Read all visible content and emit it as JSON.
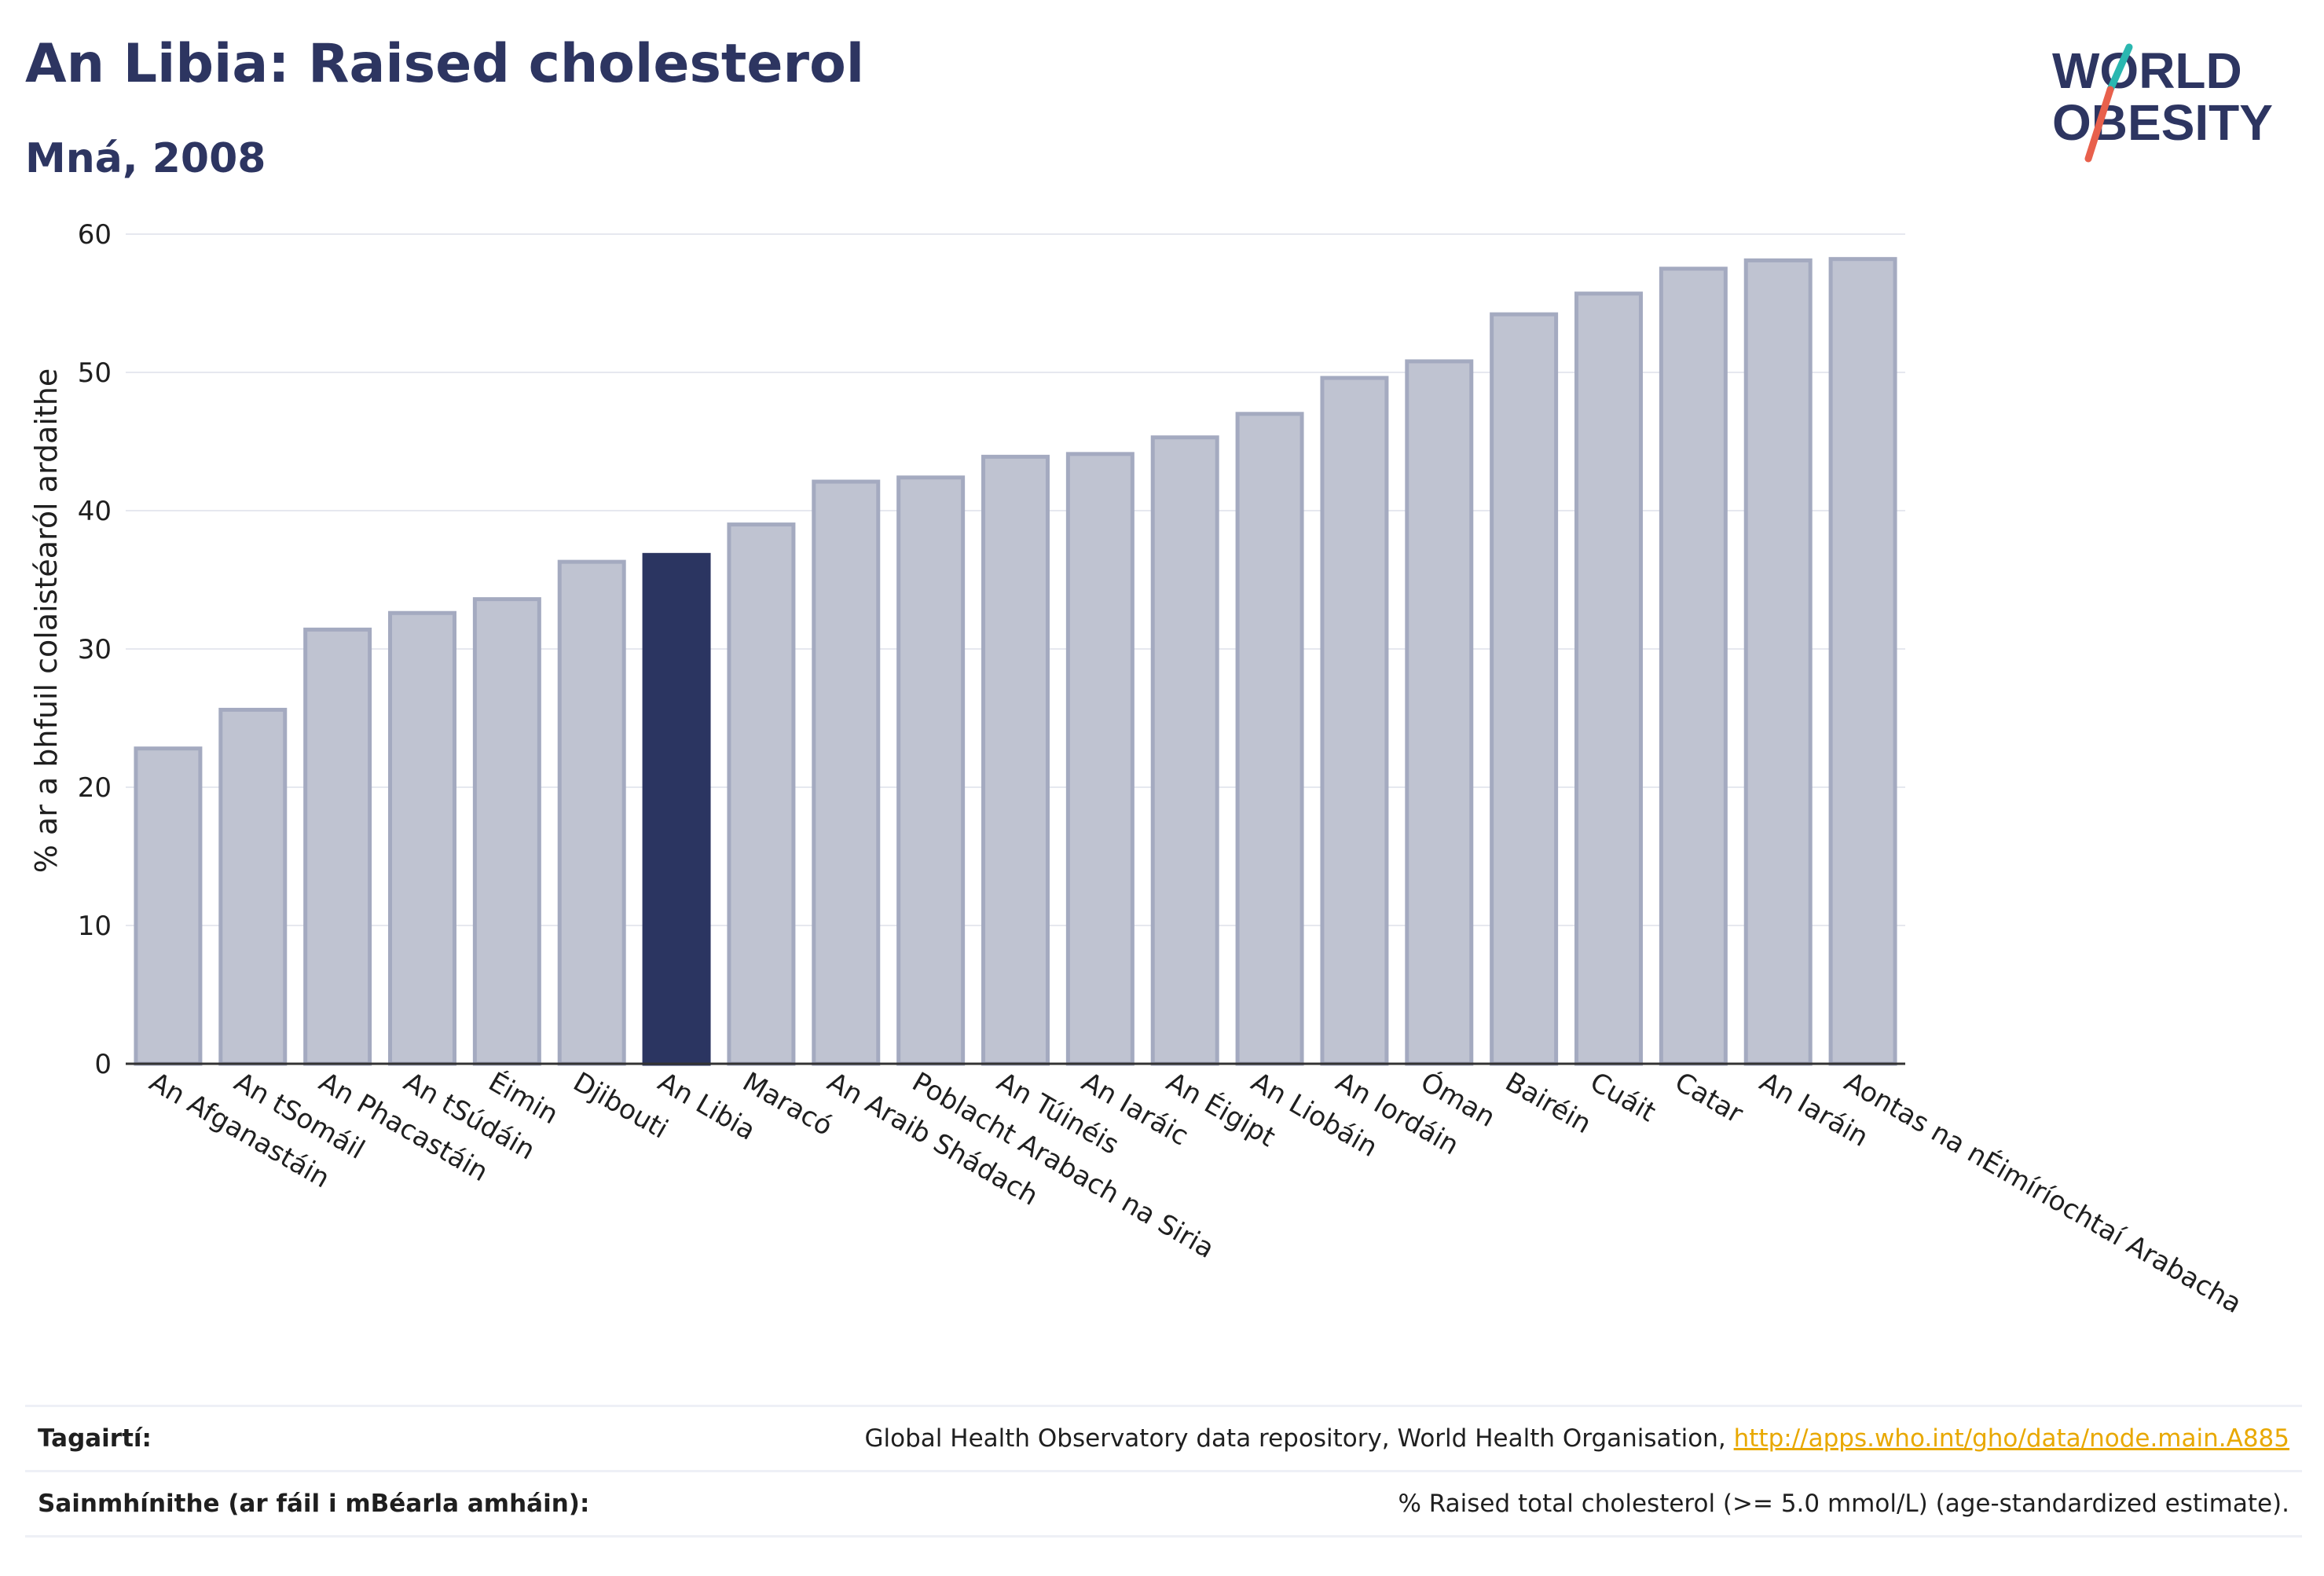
{
  "header": {
    "title": "An Libia: Raised cholesterol",
    "subtitle": "Mná, 2008"
  },
  "logo": {
    "line1": "WORLD",
    "line2": "OBESITY"
  },
  "colors": {
    "highlight": "#2b3561",
    "bar_fill": "#bfc3d1",
    "bar_stroke": "#a4aac0",
    "text_dark": "#2d3561",
    "link": "#e8a800",
    "logo_teal": "#2ab7b0",
    "logo_coral": "#e8604c"
  },
  "chart_data": {
    "type": "bar",
    "title": "An Libia: Raised cholesterol",
    "subtitle": "Mná, 2008",
    "xlabel": "",
    "ylabel": "% ar a bhfuil colaistéaról ardaithe",
    "ylim": [
      0,
      60
    ],
    "yticks": [
      0,
      10,
      20,
      30,
      40,
      50,
      60
    ],
    "grid": true,
    "highlight": "An Libia",
    "categories": [
      "An Afganastáin",
      "An tSomáil",
      "An Phacastáin",
      "An tSúdáin",
      "Éimin",
      "Djibouti",
      "An Libia",
      "Maracó",
      "An Araib Shádach",
      "Poblacht Arabach na Siria",
      "An Túinéis",
      "An Iaráic",
      "An Éigipt",
      "An Liobáin",
      "An Iordáin",
      "Óman",
      "Bairéin",
      "Cuáit",
      "Catar",
      "An Iaráin",
      "Aontas na nÉimíríochtaí Arabacha"
    ],
    "values": [
      22.8,
      25.6,
      31.4,
      32.6,
      33.6,
      36.3,
      36.8,
      39.0,
      42.1,
      42.4,
      43.9,
      44.1,
      45.3,
      47.0,
      49.6,
      50.8,
      54.2,
      55.7,
      57.5,
      58.1,
      58.2
    ]
  },
  "footer": {
    "references_label": "Tagairtí:",
    "references_text": "Global Health Observatory data repository, World Health Organisation,",
    "references_link": "http://apps.who.int/gho/data/node.main.A885",
    "definitions_label": "Sainmhínithe (ar fáil i mBéarla amháin):",
    "definitions_text": "% Raised total cholesterol (>= 5.0 mmol/L) (age-standardized estimate)."
  }
}
